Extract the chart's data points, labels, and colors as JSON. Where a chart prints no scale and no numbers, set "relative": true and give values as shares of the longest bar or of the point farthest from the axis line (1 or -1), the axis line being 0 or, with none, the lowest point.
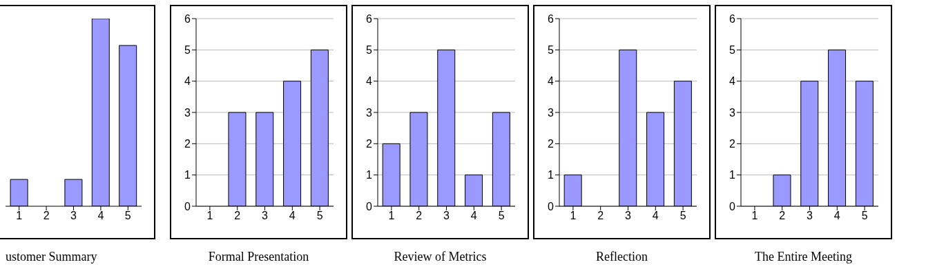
{
  "chart_data": [
    {
      "type": "bar",
      "title": "ustomer Summary",
      "categories": [
        "1",
        "2",
        "3",
        "4",
        "5"
      ],
      "values": [
        0.143,
        0,
        0.143,
        1,
        0.857
      ],
      "color": "#9999ff",
      "relative": true
    },
    {
      "type": "bar",
      "title": "Formal Presentation",
      "categories": [
        "1",
        "2",
        "3",
        "4",
        "5"
      ],
      "values": [
        0,
        3,
        3,
        4,
        5
      ],
      "color": "#9999ff",
      "ylim": [
        0,
        6
      ],
      "yticks": [
        0,
        1,
        2,
        3,
        4,
        5,
        6
      ],
      "grid": "y"
    },
    {
      "type": "bar",
      "title": "Review of Metrics",
      "categories": [
        "1",
        "2",
        "3",
        "4",
        "5"
      ],
      "values": [
        2,
        3,
        5,
        1,
        3
      ],
      "color": "#9999ff",
      "ylim": [
        0,
        6
      ],
      "yticks": [
        0,
        1,
        2,
        3,
        4,
        5,
        6
      ],
      "grid": "y"
    },
    {
      "type": "bar",
      "title": "Reflection",
      "categories": [
        "1",
        "2",
        "3",
        "4",
        "5"
      ],
      "values": [
        1,
        0,
        5,
        3,
        4
      ],
      "color": "#9999ff",
      "ylim": [
        0,
        6
      ],
      "yticks": [
        0,
        1,
        2,
        3,
        4,
        5,
        6
      ],
      "grid": "y"
    },
    {
      "type": "bar",
      "title": "The Entire Meeting",
      "categories": [
        "1",
        "2",
        "3",
        "4",
        "5"
      ],
      "values": [
        0,
        1,
        4,
        5,
        4
      ],
      "color": "#9999ff",
      "ylim": [
        0,
        6
      ],
      "yticks": [
        0,
        1,
        2,
        3,
        4,
        5,
        6
      ],
      "grid": "y"
    }
  ]
}
